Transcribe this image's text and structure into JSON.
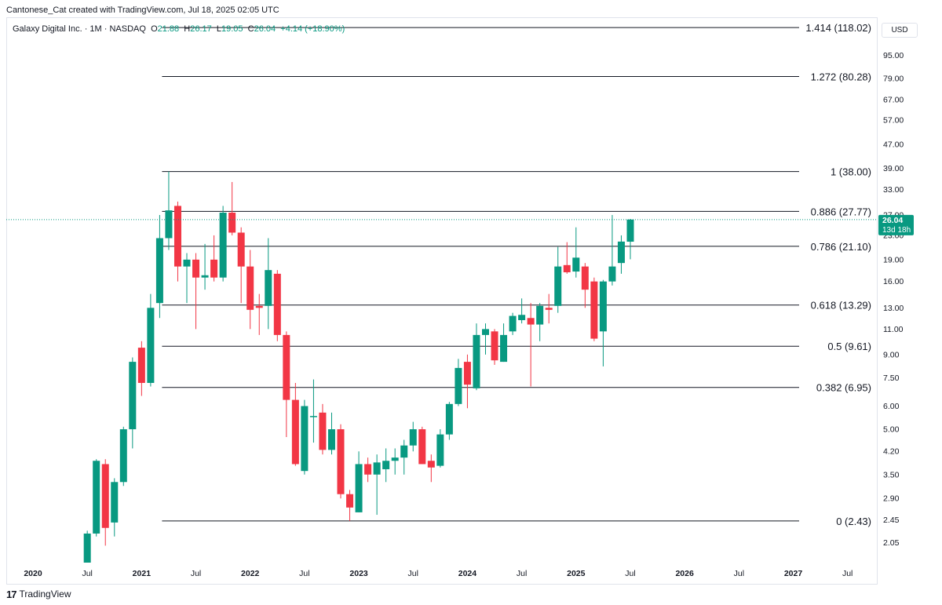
{
  "header": {
    "credit": "Cantonese_Cat created with TradingView.com, Jul 18, 2025 02:05 UTC"
  },
  "legend": {
    "symbol": "Galaxy Digital Inc. · 1M · NASDAQ",
    "o_label": "O",
    "o_value": "21.88",
    "h_label": "H",
    "h_value": "26.17",
    "l_label": "L",
    "l_value": "19.05",
    "c_label": "C",
    "c_value": "26.04",
    "change": "+4.14 (+18.90%)"
  },
  "currency": "USD",
  "footer": {
    "brand": "TradingView",
    "logo_icon": "tradingview-logo-icon"
  },
  "colors": {
    "up": "#089981",
    "down": "#f23645",
    "line": "#131722",
    "grid": "#e0e3eb"
  },
  "chart_data": {
    "type": "candlestick",
    "scale": "log",
    "interval": "1M",
    "ylim": [
      1.75,
      128
    ],
    "y_ticks": [
      2.05,
      2.45,
      2.9,
      3.5,
      4.2,
      5.0,
      6.0,
      7.5,
      9.0,
      11.0,
      13.0,
      16.0,
      19.0,
      23.0,
      27.0,
      33.0,
      39.0,
      47.0,
      57.0,
      67.0,
      79.0,
      95.0
    ],
    "x_ticks": [
      {
        "label": "2020",
        "date": "2020-01"
      },
      {
        "label": "Jul",
        "date": "2020-07"
      },
      {
        "label": "2021",
        "date": "2021-01"
      },
      {
        "label": "Jul",
        "date": "2021-07"
      },
      {
        "label": "2022",
        "date": "2022-01"
      },
      {
        "label": "Jul",
        "date": "2022-07"
      },
      {
        "label": "2023",
        "date": "2023-01"
      },
      {
        "label": "Jul",
        "date": "2023-07"
      },
      {
        "label": "2024",
        "date": "2024-01"
      },
      {
        "label": "Jul",
        "date": "2024-07"
      },
      {
        "label": "2025",
        "date": "2025-01"
      },
      {
        "label": "Jul",
        "date": "2025-07"
      },
      {
        "label": "2026",
        "date": "2026-01"
      },
      {
        "label": "Jul",
        "date": "2026-07"
      },
      {
        "label": "2027",
        "date": "2027-01"
      },
      {
        "label": "Jul",
        "date": "2027-07"
      }
    ],
    "fib_levels": [
      {
        "label": "0 (2.43)",
        "value": 2.43
      },
      {
        "label": "0.382 (6.95)",
        "value": 6.95
      },
      {
        "label": "0.5 (9.61)",
        "value": 9.61
      },
      {
        "label": "0.618 (13.29)",
        "value": 13.29
      },
      {
        "label": "0.786 (21.10)",
        "value": 21.1
      },
      {
        "label": "0.886 (27.77)",
        "value": 27.77
      },
      {
        "label": "1 (38.00)",
        "value": 38.0
      },
      {
        "label": "1.272 (80.28)",
        "value": 80.28
      },
      {
        "label": "1.414 (118.02)",
        "value": 118.02
      }
    ],
    "fib_start_date": "2021-03",
    "last_price": {
      "value": "26.04",
      "countdown": "13d 18h",
      "raw": 26.04
    },
    "candles": [
      {
        "date": "2020-07",
        "o": 1.75,
        "h": 2.25,
        "l": 1.75,
        "c": 2.2
      },
      {
        "date": "2020-08",
        "o": 2.2,
        "h": 3.95,
        "l": 2.15,
        "c": 3.9
      },
      {
        "date": "2020-09",
        "o": 3.8,
        "h": 3.95,
        "l": 2.0,
        "c": 2.3
      },
      {
        "date": "2020-10",
        "o": 2.4,
        "h": 3.4,
        "l": 2.15,
        "c": 3.3
      },
      {
        "date": "2020-11",
        "o": 3.3,
        "h": 5.1,
        "l": 3.2,
        "c": 5.0
      },
      {
        "date": "2020-12",
        "o": 5.0,
        "h": 8.8,
        "l": 4.3,
        "c": 8.5
      },
      {
        "date": "2021-01",
        "o": 9.5,
        "h": 10.0,
        "l": 6.5,
        "c": 7.2
      },
      {
        "date": "2021-02",
        "o": 7.2,
        "h": 14.5,
        "l": 7.0,
        "c": 13.0
      },
      {
        "date": "2021-03",
        "o": 13.5,
        "h": 27.0,
        "l": 12.0,
        "c": 22.5
      },
      {
        "date": "2021-04",
        "o": 22.5,
        "h": 38.0,
        "l": 20.5,
        "c": 28.0
      },
      {
        "date": "2021-05",
        "o": 29.0,
        "h": 30.0,
        "l": 16.0,
        "c": 18.0
      },
      {
        "date": "2021-06",
        "o": 18.0,
        "h": 20.0,
        "l": 13.5,
        "c": 19.0
      },
      {
        "date": "2021-07",
        "o": 19.0,
        "h": 20.0,
        "l": 11.0,
        "c": 16.5
      },
      {
        "date": "2021-08",
        "o": 16.5,
        "h": 21.5,
        "l": 15.0,
        "c": 16.8
      },
      {
        "date": "2021-09",
        "o": 19.0,
        "h": 23.0,
        "l": 16.0,
        "c": 16.5
      },
      {
        "date": "2021-10",
        "o": 16.5,
        "h": 29.0,
        "l": 16.0,
        "c": 27.5
      },
      {
        "date": "2021-11",
        "o": 27.5,
        "h": 35.0,
        "l": 23.0,
        "c": 23.5
      },
      {
        "date": "2021-12",
        "o": 23.5,
        "h": 24.5,
        "l": 13.5,
        "c": 18.0
      },
      {
        "date": "2022-01",
        "o": 18.0,
        "h": 20.5,
        "l": 11.0,
        "c": 12.8
      },
      {
        "date": "2022-02",
        "o": 13.2,
        "h": 14.5,
        "l": 10.5,
        "c": 13.0
      },
      {
        "date": "2022-03",
        "o": 13.2,
        "h": 22.5,
        "l": 11.0,
        "c": 17.5
      },
      {
        "date": "2022-04",
        "o": 17.0,
        "h": 17.5,
        "l": 10.0,
        "c": 10.5
      },
      {
        "date": "2022-05",
        "o": 10.5,
        "h": 10.8,
        "l": 4.7,
        "c": 6.3
      },
      {
        "date": "2022-06",
        "o": 6.3,
        "h": 7.2,
        "l": 3.75,
        "c": 3.8
      },
      {
        "date": "2022-07",
        "o": 3.6,
        "h": 6.3,
        "l": 3.5,
        "c": 6.0
      },
      {
        "date": "2022-08",
        "o": 5.5,
        "h": 7.4,
        "l": 4.5,
        "c": 5.55
      },
      {
        "date": "2022-09",
        "o": 5.7,
        "h": 6.1,
        "l": 4.1,
        "c": 4.25
      },
      {
        "date": "2022-10",
        "o": 4.25,
        "h": 5.7,
        "l": 4.1,
        "c": 5.0
      },
      {
        "date": "2022-11",
        "o": 5.0,
        "h": 5.2,
        "l": 2.9,
        "c": 3.0
      },
      {
        "date": "2022-12",
        "o": 3.0,
        "h": 3.1,
        "l": 2.43,
        "c": 2.7
      },
      {
        "date": "2023-01",
        "o": 2.6,
        "h": 4.2,
        "l": 2.6,
        "c": 3.8
      },
      {
        "date": "2023-02",
        "o": 3.8,
        "h": 4.0,
        "l": 3.3,
        "c": 3.5
      },
      {
        "date": "2023-03",
        "o": 3.5,
        "h": 4.1,
        "l": 2.55,
        "c": 3.85
      },
      {
        "date": "2023-04",
        "o": 3.65,
        "h": 4.3,
        "l": 3.3,
        "c": 3.9
      },
      {
        "date": "2023-05",
        "o": 3.9,
        "h": 4.3,
        "l": 3.5,
        "c": 4.0
      },
      {
        "date": "2023-06",
        "o": 4.0,
        "h": 4.6,
        "l": 3.5,
        "c": 4.4
      },
      {
        "date": "2023-07",
        "o": 4.4,
        "h": 5.3,
        "l": 4.2,
        "c": 5.0
      },
      {
        "date": "2023-08",
        "o": 5.0,
        "h": 5.1,
        "l": 3.8,
        "c": 3.8
      },
      {
        "date": "2023-09",
        "o": 3.9,
        "h": 4.1,
        "l": 3.3,
        "c": 3.7
      },
      {
        "date": "2023-10",
        "o": 3.75,
        "h": 5.0,
        "l": 3.7,
        "c": 4.8
      },
      {
        "date": "2023-11",
        "o": 4.8,
        "h": 6.2,
        "l": 4.6,
        "c": 6.1
      },
      {
        "date": "2023-12",
        "o": 6.1,
        "h": 8.7,
        "l": 6.0,
        "c": 8.1
      },
      {
        "date": "2024-01",
        "o": 8.5,
        "h": 9.0,
        "l": 5.9,
        "c": 7.1
      },
      {
        "date": "2024-02",
        "o": 6.9,
        "h": 11.5,
        "l": 6.8,
        "c": 10.5
      },
      {
        "date": "2024-03",
        "o": 10.5,
        "h": 11.5,
        "l": 9.0,
        "c": 11.0
      },
      {
        "date": "2024-04",
        "o": 10.8,
        "h": 11.0,
        "l": 8.3,
        "c": 8.6
      },
      {
        "date": "2024-05",
        "o": 8.5,
        "h": 11.5,
        "l": 8.5,
        "c": 10.5
      },
      {
        "date": "2024-06",
        "o": 10.8,
        "h": 12.5,
        "l": 10.5,
        "c": 12.2
      },
      {
        "date": "2024-07",
        "o": 11.8,
        "h": 14.0,
        "l": 11.5,
        "c": 12.3
      },
      {
        "date": "2024-08",
        "o": 12.0,
        "h": 13.5,
        "l": 7.0,
        "c": 11.4
      },
      {
        "date": "2024-09",
        "o": 11.4,
        "h": 13.5,
        "l": 10.0,
        "c": 13.2
      },
      {
        "date": "2024-10",
        "o": 13.0,
        "h": 14.5,
        "l": 11.5,
        "c": 12.8
      },
      {
        "date": "2024-11",
        "o": 13.2,
        "h": 21.0,
        "l": 12.5,
        "c": 18.0
      },
      {
        "date": "2024-12",
        "o": 18.2,
        "h": 21.8,
        "l": 17.0,
        "c": 17.2
      },
      {
        "date": "2025-01",
        "o": 17.3,
        "h": 24.5,
        "l": 16.5,
        "c": 19.3
      },
      {
        "date": "2025-02",
        "o": 18.0,
        "h": 18.5,
        "l": 13.0,
        "c": 15.0
      },
      {
        "date": "2025-03",
        "o": 16.0,
        "h": 16.5,
        "l": 10.0,
        "c": 10.2
      },
      {
        "date": "2025-04",
        "o": 10.8,
        "h": 16.2,
        "l": 8.2,
        "c": 16.0
      },
      {
        "date": "2025-05",
        "o": 16.0,
        "h": 27.0,
        "l": 15.5,
        "c": 18.0
      },
      {
        "date": "2025-06",
        "o": 18.5,
        "h": 23.0,
        "l": 17.0,
        "c": 21.9
      },
      {
        "date": "2025-07",
        "o": 21.88,
        "h": 26.17,
        "l": 19.05,
        "c": 26.04
      }
    ]
  }
}
